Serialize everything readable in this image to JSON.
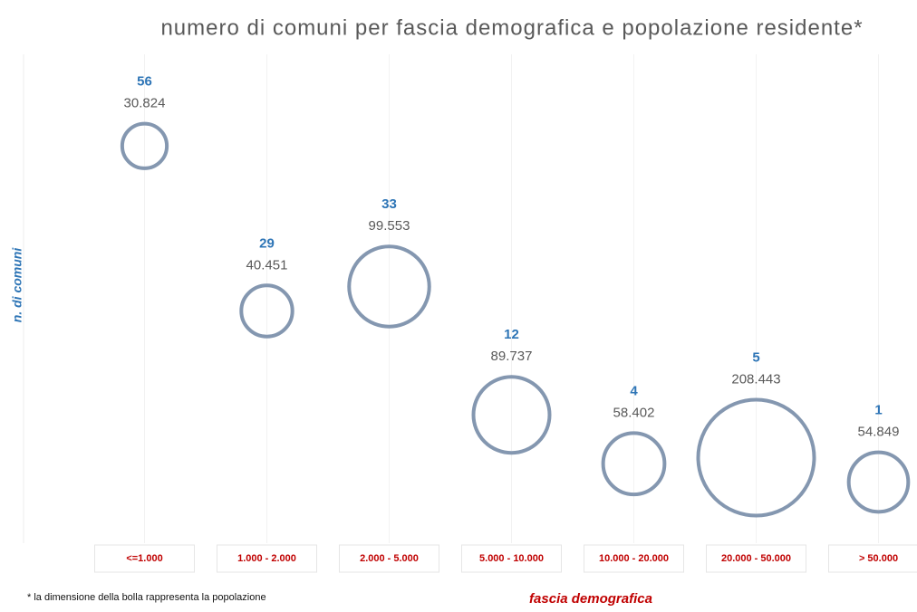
{
  "chart_data": {
    "type": "bubble",
    "title": "numero di comuni per fascia demografica e popolazione residente*",
    "ylabel": "n. di comuni",
    "xlabel": "fascia demografica",
    "footnote": "* la dimensione della bolla rappresenta la popolazione",
    "categories": [
      "<=1.000",
      "1.000 - 2.000",
      "2.000 - 5.000",
      "5.000 - 10.000",
      "10.000 - 20.000",
      "20.000 - 50.000",
      "> 50.000"
    ],
    "values": [
      56,
      29,
      33,
      12,
      4,
      5,
      1
    ],
    "sizes": [
      30824,
      40451,
      99553,
      89737,
      58402,
      208443,
      54849
    ],
    "value_labels": [
      "30.824",
      "40.451",
      "99.553",
      "89.737",
      "58.402",
      "208.443",
      "54.849"
    ],
    "color": "#8497b0",
    "ylim": [
      -9,
      71
    ]
  }
}
